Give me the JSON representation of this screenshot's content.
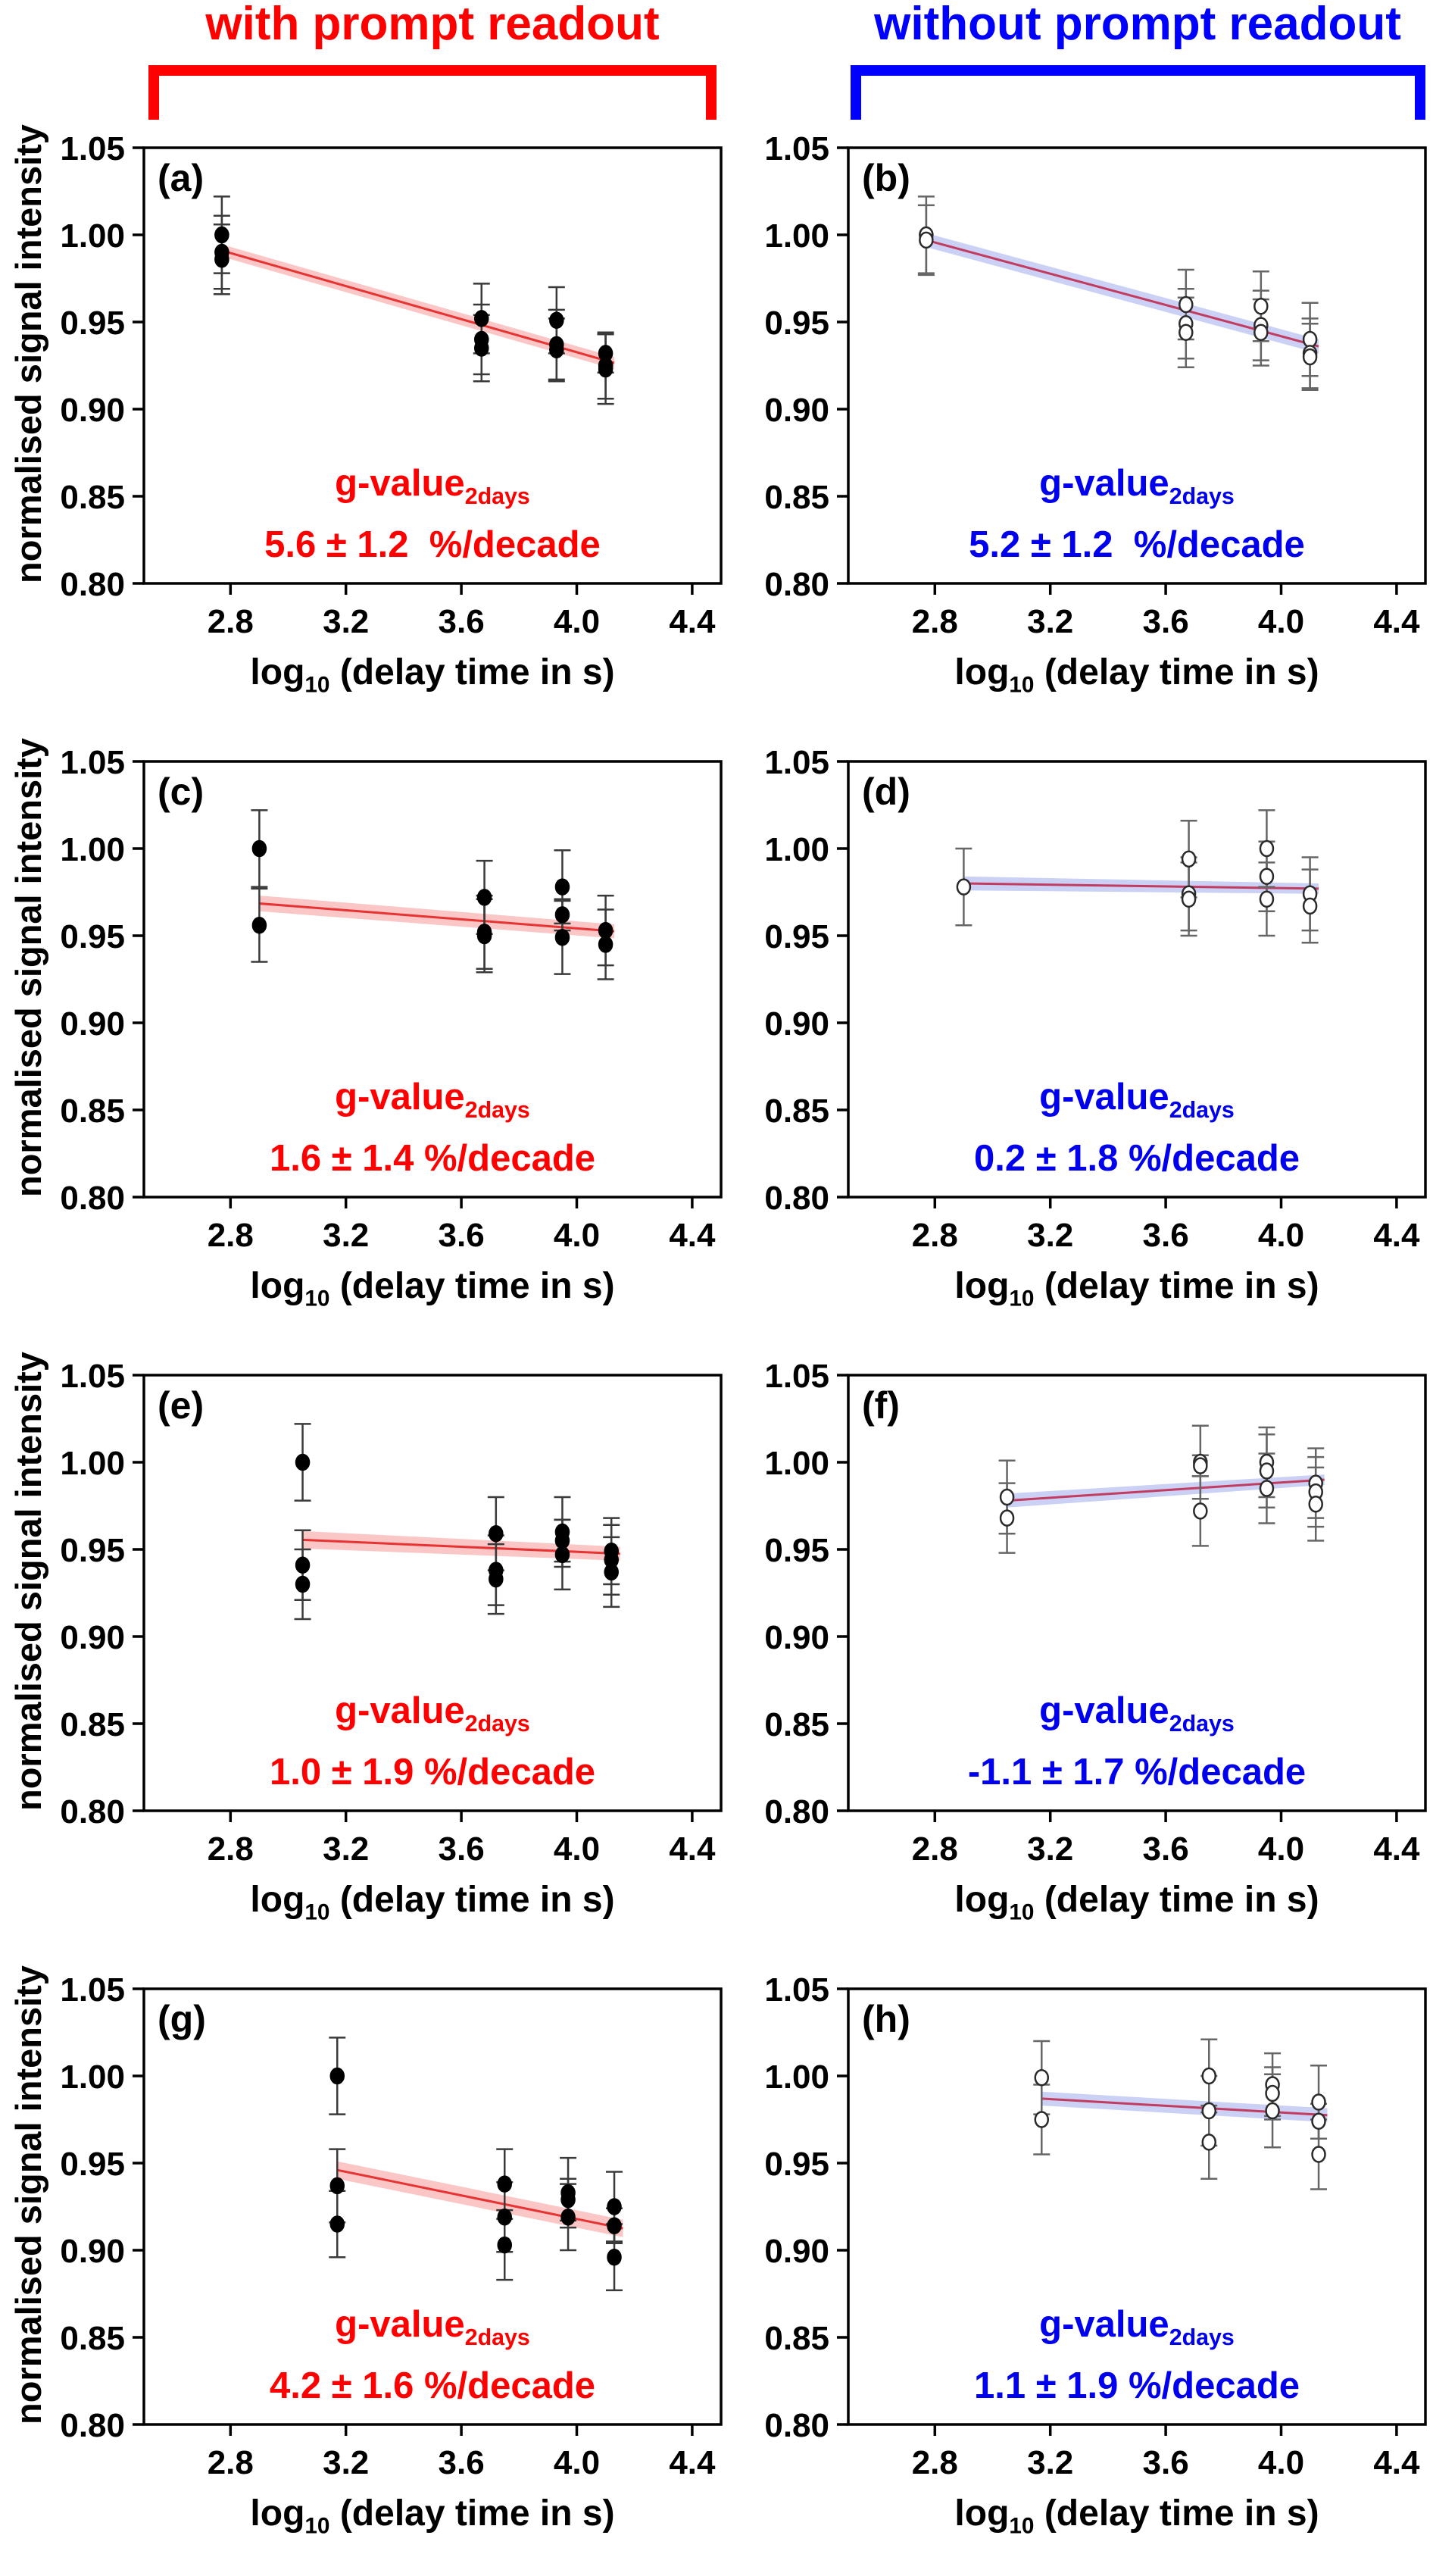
{
  "headers": [
    {
      "label": "with prompt readout",
      "color": "#ff0000"
    },
    {
      "label": "without prompt readout",
      "color": "#0000ff"
    }
  ],
  "axis": {
    "xlabel_log": "log",
    "xlabel_sub": "10",
    "xlabel_rest": " (delay time in s)",
    "ylabel": "normalised signal intensity",
    "xlim": [
      2.5,
      4.5
    ],
    "ylim": [
      0.8,
      1.05
    ],
    "xticks": [
      2.8,
      3.2,
      3.6,
      4.0,
      4.4
    ],
    "yticks": [
      0.8,
      0.85,
      0.9,
      0.95,
      1.0,
      1.05
    ],
    "grid": false
  },
  "chart_data": [
    {
      "tag": "(a)",
      "type": "scatter",
      "group": "with prompt readout",
      "marker": "filled",
      "accent": "#ff0000",
      "line_color": "#e83333",
      "band_color": "#f7a8a8",
      "ebar_color": "#3a3a3a",
      "gvalue_label": "g-value",
      "gvalue_sub": "2days",
      "gvalue_text": "5.6 ± 1.2  %/decade",
      "fit": {
        "x": [
          2.77,
          4.13
        ],
        "y": [
          0.991,
          0.9265
        ],
        "band": [
          0.0035,
          0.0035
        ]
      },
      "points": [
        [
          2.77,
          1.0,
          0.022
        ],
        [
          2.77,
          0.99,
          0.021
        ],
        [
          2.77,
          0.986,
          0.02
        ],
        [
          3.67,
          0.952,
          0.02
        ],
        [
          3.67,
          0.94,
          0.02
        ],
        [
          3.67,
          0.935,
          0.019
        ],
        [
          3.93,
          0.951,
          0.019
        ],
        [
          3.93,
          0.937,
          0.02
        ],
        [
          3.93,
          0.934,
          0.018
        ],
        [
          4.1,
          0.932,
          0.011
        ],
        [
          4.1,
          0.925,
          0.019
        ],
        [
          4.1,
          0.923,
          0.02
        ]
      ]
    },
    {
      "tag": "(b)",
      "type": "scatter",
      "group": "without prompt readout",
      "marker": "open",
      "accent": "#0000ee",
      "line_color": "#c23b60",
      "band_color": "#aeb8f0",
      "ebar_color": "#666666",
      "gvalue_label": "g-value",
      "gvalue_sub": "2days",
      "gvalue_text": "5.2 ± 1.2  %/decade",
      "fit": {
        "x": [
          2.77,
          4.13
        ],
        "y": [
          0.997,
          0.936
        ],
        "band": [
          0.004,
          0.004
        ]
      },
      "points": [
        [
          2.77,
          1.0,
          0.022
        ],
        [
          2.77,
          0.997,
          0.02
        ],
        [
          3.67,
          0.96,
          0.02
        ],
        [
          3.67,
          0.949,
          0.02
        ],
        [
          3.67,
          0.944,
          0.02
        ],
        [
          3.93,
          0.959,
          0.02
        ],
        [
          3.93,
          0.948,
          0.02
        ],
        [
          3.93,
          0.944,
          0.019
        ],
        [
          4.1,
          0.94,
          0.021
        ],
        [
          4.1,
          0.932,
          0.02
        ],
        [
          4.1,
          0.93,
          0.019
        ]
      ]
    },
    {
      "tag": "(c)",
      "type": "scatter",
      "group": "with prompt readout",
      "marker": "filled",
      "accent": "#ff0000",
      "line_color": "#e83333",
      "band_color": "#f7a8a8",
      "ebar_color": "#3a3a3a",
      "gvalue_label": "g-value",
      "gvalue_sub": "2days",
      "gvalue_text": "1.6 ± 1.4 %/decade",
      "fit": {
        "x": [
          2.9,
          4.13
        ],
        "y": [
          0.9685,
          0.9525
        ],
        "band": [
          0.0045,
          0.004
        ]
      },
      "points": [
        [
          2.9,
          1.0,
          0.022
        ],
        [
          2.9,
          0.956,
          0.021
        ],
        [
          3.68,
          0.972,
          0.021
        ],
        [
          3.68,
          0.952,
          0.021
        ],
        [
          3.68,
          0.95,
          0.021
        ],
        [
          3.95,
          0.978,
          0.021
        ],
        [
          3.95,
          0.962,
          0.009
        ],
        [
          3.95,
          0.949,
          0.021
        ],
        [
          4.1,
          0.953,
          0.02
        ],
        [
          4.1,
          0.945,
          0.02
        ]
      ]
    },
    {
      "tag": "(d)",
      "type": "scatter",
      "group": "without prompt readout",
      "marker": "open",
      "accent": "#0000ee",
      "line_color": "#c23b60",
      "band_color": "#aeb8f0",
      "ebar_color": "#666666",
      "gvalue_label": "g-value",
      "gvalue_sub": "2days",
      "gvalue_text": "0.2 ± 1.8 %/decade",
      "fit": {
        "x": [
          2.9,
          4.13
        ],
        "y": [
          0.98,
          0.977
        ],
        "band": [
          0.004,
          0.003
        ]
      },
      "points": [
        [
          2.9,
          0.978,
          0.022
        ],
        [
          3.68,
          0.994,
          0.022
        ],
        [
          3.68,
          0.974,
          0.021
        ],
        [
          3.68,
          0.971,
          0.021
        ],
        [
          3.95,
          1.0,
          0.022
        ],
        [
          3.95,
          0.984,
          0.02
        ],
        [
          3.95,
          0.971,
          0.021
        ],
        [
          4.1,
          0.974,
          0.021
        ],
        [
          4.1,
          0.967,
          0.021
        ]
      ]
    },
    {
      "tag": "(e)",
      "type": "scatter",
      "group": "with prompt readout",
      "marker": "filled",
      "accent": "#ff0000",
      "line_color": "#e83333",
      "band_color": "#f7a8a8",
      "ebar_color": "#3a3a3a",
      "gvalue_label": "g-value",
      "gvalue_sub": "2days",
      "gvalue_text": "1.0 ± 1.9 %/decade",
      "fit": {
        "x": [
          3.05,
          4.15
        ],
        "y": [
          0.9555,
          0.9475
        ],
        "band": [
          0.005,
          0.004
        ]
      },
      "points": [
        [
          3.05,
          1.0,
          0.022
        ],
        [
          3.05,
          0.941,
          0.02
        ],
        [
          3.05,
          0.93,
          0.02
        ],
        [
          3.72,
          0.959,
          0.021
        ],
        [
          3.72,
          0.938,
          0.02
        ],
        [
          3.72,
          0.933,
          0.02
        ],
        [
          3.95,
          0.96,
          0.02
        ],
        [
          3.95,
          0.955,
          0.012
        ],
        [
          3.95,
          0.947,
          0.02
        ],
        [
          4.12,
          0.949,
          0.019
        ],
        [
          4.12,
          0.944,
          0.02
        ],
        [
          4.12,
          0.937,
          0.02
        ]
      ]
    },
    {
      "tag": "(f)",
      "type": "scatter",
      "group": "without prompt readout",
      "marker": "open",
      "accent": "#0000ee",
      "line_color": "#c23b60",
      "band_color": "#aeb8f0",
      "ebar_color": "#666666",
      "gvalue_label": "g-value",
      "gvalue_sub": "2days",
      "gvalue_text": "-1.1 ± 1.7 %/decade",
      "fit": {
        "x": [
          3.05,
          4.15
        ],
        "y": [
          0.978,
          0.99
        ],
        "band": [
          0.004,
          0.003
        ]
      },
      "points": [
        [
          3.05,
          0.98,
          0.021
        ],
        [
          3.05,
          0.968,
          0.02
        ],
        [
          3.72,
          1.0,
          0.021
        ],
        [
          3.72,
          0.998,
          0.006
        ],
        [
          3.72,
          0.972,
          0.02
        ],
        [
          3.95,
          1.0,
          0.02
        ],
        [
          3.95,
          0.995,
          0.021
        ],
        [
          3.95,
          0.985,
          0.02
        ],
        [
          4.12,
          0.988,
          0.02
        ],
        [
          4.12,
          0.983,
          0.02
        ],
        [
          4.12,
          0.976,
          0.021
        ]
      ]
    },
    {
      "tag": "(g)",
      "type": "scatter",
      "group": "with prompt readout",
      "marker": "filled",
      "accent": "#ff0000",
      "line_color": "#e83333",
      "band_color": "#f7a8a8",
      "ebar_color": "#3a3a3a",
      "gvalue_label": "g-value",
      "gvalue_sub": "2days",
      "gvalue_text": "4.2 ± 1.6 %/decade",
      "fit": {
        "x": [
          3.17,
          4.16
        ],
        "y": [
          0.946,
          0.9125
        ],
        "band": [
          0.005,
          0.005
        ]
      },
      "points": [
        [
          3.17,
          1.0,
          0.022
        ],
        [
          3.17,
          0.937,
          0.021
        ],
        [
          3.17,
          0.915,
          0.019
        ],
        [
          3.75,
          0.938,
          0.02
        ],
        [
          3.75,
          0.919,
          0.02
        ],
        [
          3.75,
          0.903,
          0.02
        ],
        [
          3.97,
          0.933,
          0.02
        ],
        [
          3.97,
          0.929,
          0.012
        ],
        [
          3.97,
          0.919,
          0.019
        ],
        [
          4.13,
          0.925,
          0.02
        ],
        [
          4.13,
          0.914,
          0.01
        ],
        [
          4.13,
          0.896,
          0.019
        ]
      ]
    },
    {
      "tag": "(h)",
      "type": "scatter",
      "group": "without prompt readout",
      "marker": "open",
      "accent": "#0000ee",
      "line_color": "#c23b60",
      "band_color": "#aeb8f0",
      "ebar_color": "#666666",
      "gvalue_label": "g-value",
      "gvalue_sub": "2days",
      "gvalue_text": "1.1 ± 1.9 %/decade",
      "fit": {
        "x": [
          3.17,
          4.16
        ],
        "y": [
          0.987,
          0.9775
        ],
        "band": [
          0.004,
          0.004
        ]
      },
      "points": [
        [
          3.17,
          0.999,
          0.021
        ],
        [
          3.17,
          0.975,
          0.02
        ],
        [
          3.75,
          1.0,
          0.021
        ],
        [
          3.75,
          0.98,
          0.02
        ],
        [
          3.75,
          0.962,
          0.021
        ],
        [
          3.97,
          0.995,
          0.018
        ],
        [
          3.97,
          0.99,
          0.015
        ],
        [
          3.97,
          0.98,
          0.021
        ],
        [
          4.13,
          0.985,
          0.021
        ],
        [
          4.13,
          0.974,
          0.01
        ],
        [
          4.13,
          0.955,
          0.02
        ]
      ]
    }
  ]
}
